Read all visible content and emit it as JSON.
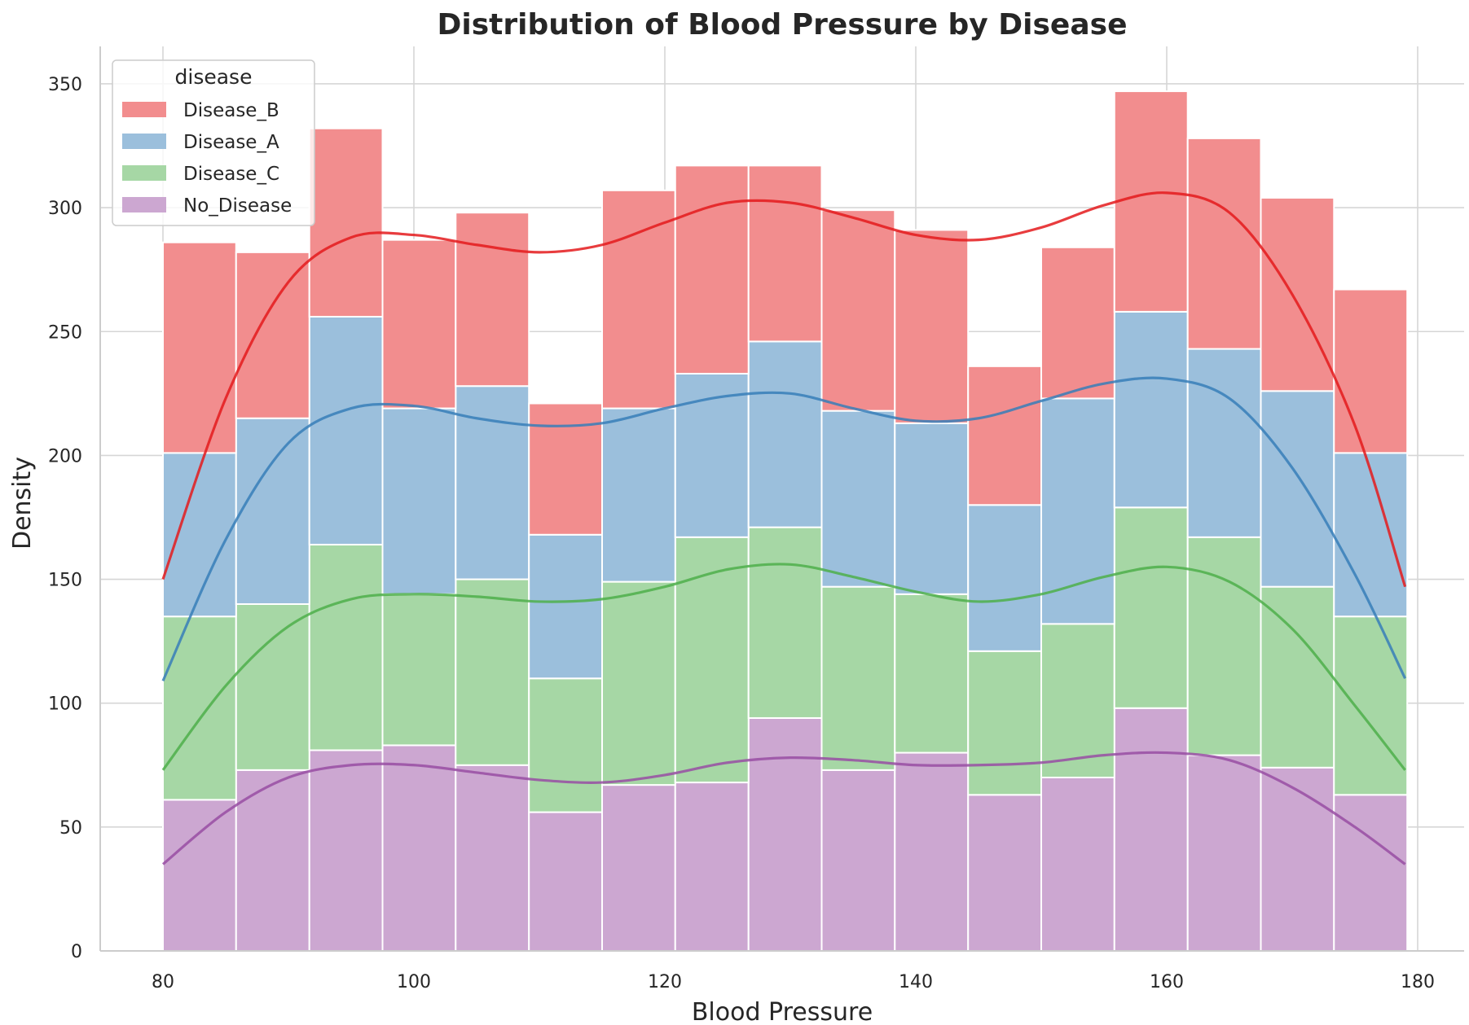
{
  "chart_data": {
    "type": "histogram",
    "title": "Distribution of Blood Pressure by Disease",
    "xlabel": "Blood Pressure",
    "ylabel": "Density",
    "xlim": [
      75,
      181
    ],
    "ylim": [
      0,
      365
    ],
    "xticks": [
      80,
      100,
      120,
      140,
      160,
      180
    ],
    "yticks": [
      0,
      50,
      100,
      150,
      200,
      250,
      300,
      350
    ],
    "grid": true,
    "multiple": "stack",
    "bin_edges": [
      80,
      85.83,
      91.67,
      97.5,
      103.33,
      109.17,
      115,
      120.83,
      126.67,
      132.5,
      138.33,
      144.17,
      150,
      155.83,
      161.67,
      167.5,
      173.33,
      179.17
    ],
    "legend": {
      "title": "disease",
      "location": "top-left"
    },
    "series": [
      {
        "name": "Disease_B",
        "color": "#e41a1c",
        "counts": [
          85,
          67,
          76,
          68,
          70,
          53,
          88,
          84,
          71,
          81,
          78,
          56,
          61,
          89,
          85,
          78,
          66
        ],
        "kde_x": [
          80,
          85,
          90,
          95,
          100,
          105,
          110,
          115,
          120,
          125,
          130,
          135,
          140,
          145,
          150,
          155,
          160,
          165,
          170,
          175,
          179
        ],
        "kde_y": [
          150,
          223,
          270,
          288,
          289,
          285,
          282,
          285,
          294,
          302,
          302,
          296,
          289,
          287,
          292,
          301,
          306,
          298,
          265,
          212,
          147
        ]
      },
      {
        "name": "Disease_A",
        "color": "#377eb8",
        "counts": [
          66,
          75,
          92,
          75,
          78,
          58,
          70,
          66,
          75,
          71,
          69,
          59,
          91,
          79,
          76,
          79,
          66
        ],
        "kde_x": [
          80,
          85,
          90,
          95,
          100,
          105,
          110,
          115,
          120,
          125,
          130,
          135,
          140,
          145,
          150,
          155,
          160,
          165,
          170,
          175,
          179
        ],
        "kde_y": [
          109,
          166,
          205,
          219,
          220,
          215,
          212,
          213,
          219,
          224,
          225,
          219,
          214,
          215,
          222,
          229,
          231,
          223,
          195,
          152,
          110
        ]
      },
      {
        "name": "Disease_C",
        "color": "#4daf4a",
        "counts": [
          74,
          67,
          83,
          61,
          75,
          54,
          82,
          99,
          77,
          74,
          64,
          58,
          62,
          81,
          88,
          73,
          72
        ],
        "kde_x": [
          80,
          85,
          90,
          95,
          100,
          105,
          110,
          115,
          120,
          125,
          130,
          135,
          140,
          145,
          150,
          155,
          160,
          165,
          170,
          175,
          179
        ],
        "kde_y": [
          73,
          107,
          131,
          142,
          144,
          143,
          141,
          142,
          147,
          154,
          156,
          151,
          145,
          141,
          144,
          151,
          155,
          149,
          130,
          99,
          73
        ]
      },
      {
        "name": "No_Disease",
        "color": "#984ea3",
        "counts": [
          61,
          73,
          81,
          83,
          75,
          56,
          67,
          68,
          94,
          73,
          80,
          63,
          70,
          98,
          79,
          74,
          63
        ],
        "kde_x": [
          80,
          85,
          90,
          95,
          100,
          105,
          110,
          115,
          120,
          125,
          130,
          135,
          140,
          145,
          150,
          155,
          160,
          165,
          170,
          175,
          179
        ],
        "kde_y": [
          35,
          56,
          70,
          75,
          75,
          72,
          69,
          68,
          71,
          76,
          78,
          77,
          75,
          75,
          76,
          79,
          80,
          77,
          66,
          50,
          35
        ]
      }
    ]
  }
}
